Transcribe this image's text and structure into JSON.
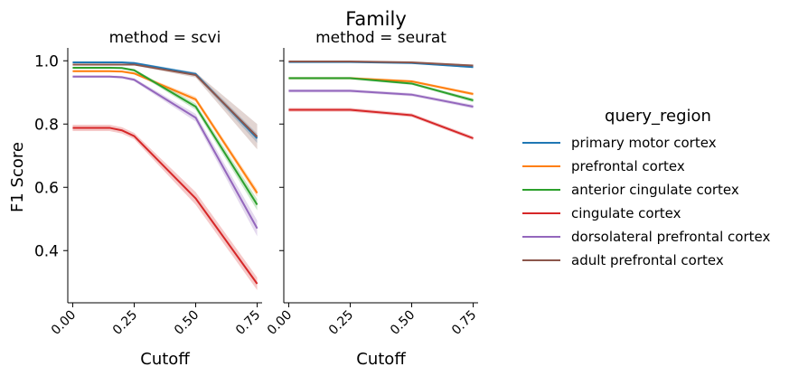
{
  "figure_title": "Family",
  "y_axis_label": "F1 Score",
  "legend": {
    "title": "query_region",
    "placement": "right",
    "entries": [
      {
        "label": "primary motor cortex",
        "color": "#1f77b4"
      },
      {
        "label": "prefrontal cortex",
        "color": "#ff7f0e"
      },
      {
        "label": "anterior cingulate cortex",
        "color": "#2ca02c"
      },
      {
        "label": "cingulate cortex",
        "color": "#d62728"
      },
      {
        "label": "dorsolateral prefrontal cortex",
        "color": "#9467bd"
      },
      {
        "label": "adult prefrontal cortex",
        "color": "#8c564b"
      }
    ]
  },
  "chart_data": [
    {
      "type": "line",
      "title": "method = scvi",
      "xlabel": "Cutoff",
      "ylabel": "F1 Score",
      "x": [
        0.0,
        0.1,
        0.15,
        0.2,
        0.25,
        0.5,
        0.75
      ],
      "xticks": [
        "0.00",
        "0.25",
        "0.50",
        "0.75"
      ],
      "yticks": [
        "0.4",
        "0.6",
        "0.8",
        "1.0"
      ],
      "xlim": [
        -0.02,
        0.77
      ],
      "ylim": [
        0.235,
        1.035
      ],
      "series": [
        {
          "name": "primary motor cortex",
          "values": [
            0.995,
            0.995,
            0.995,
            0.995,
            0.993,
            0.958,
            0.755
          ],
          "ci": [
            0.002,
            0.002,
            0.002,
            0.002,
            0.003,
            0.006,
            0.015
          ]
        },
        {
          "name": "prefrontal cortex",
          "values": [
            0.967,
            0.967,
            0.967,
            0.966,
            0.96,
            0.878,
            0.582
          ],
          "ci": [
            0.003,
            0.003,
            0.003,
            0.003,
            0.004,
            0.008,
            0.012
          ]
        },
        {
          "name": "anterior cingulate cortex",
          "values": [
            0.978,
            0.978,
            0.978,
            0.977,
            0.97,
            0.855,
            0.545
          ],
          "ci": [
            0.003,
            0.003,
            0.003,
            0.003,
            0.004,
            0.01,
            0.018
          ]
        },
        {
          "name": "cingulate cortex",
          "values": [
            0.788,
            0.788,
            0.788,
            0.78,
            0.762,
            0.565,
            0.295
          ],
          "ci": [
            0.01,
            0.01,
            0.01,
            0.01,
            0.01,
            0.02,
            0.02
          ]
        },
        {
          "name": "dorsolateral prefrontal cortex",
          "values": [
            0.95,
            0.95,
            0.95,
            0.948,
            0.94,
            0.82,
            0.47
          ],
          "ci": [
            0.004,
            0.004,
            0.004,
            0.004,
            0.005,
            0.012,
            0.025
          ]
        },
        {
          "name": "adult prefrontal cortex",
          "values": [
            0.988,
            0.988,
            0.988,
            0.988,
            0.988,
            0.955,
            0.76
          ],
          "ci": [
            0.003,
            0.003,
            0.003,
            0.003,
            0.003,
            0.008,
            0.04
          ]
        }
      ]
    },
    {
      "type": "line",
      "title": "method = seurat",
      "xlabel": "Cutoff",
      "ylabel": "",
      "x": [
        0.0,
        0.25,
        0.5,
        0.75
      ],
      "xticks": [
        "0.00",
        "0.25",
        "0.50",
        "0.75"
      ],
      "xlim": [
        -0.02,
        0.77
      ],
      "ylim": [
        0.235,
        1.035
      ],
      "series": [
        {
          "name": "primary motor cortex",
          "values": [
            0.996,
            0.996,
            0.993,
            0.98
          ],
          "ci": [
            0.002,
            0.002,
            0.002,
            0.003
          ]
        },
        {
          "name": "prefrontal cortex",
          "values": [
            0.945,
            0.945,
            0.935,
            0.895
          ],
          "ci": [
            0.004,
            0.004,
            0.004,
            0.005
          ]
        },
        {
          "name": "anterior cingulate cortex",
          "values": [
            0.945,
            0.945,
            0.928,
            0.875
          ],
          "ci": [
            0.004,
            0.004,
            0.004,
            0.006
          ]
        },
        {
          "name": "cingulate cortex",
          "values": [
            0.845,
            0.845,
            0.828,
            0.755
          ],
          "ci": [
            0.006,
            0.006,
            0.006,
            0.006
          ]
        },
        {
          "name": "dorsolateral prefrontal cortex",
          "values": [
            0.905,
            0.905,
            0.893,
            0.855
          ],
          "ci": [
            0.005,
            0.005,
            0.005,
            0.006
          ]
        },
        {
          "name": "adult prefrontal cortex",
          "values": [
            0.998,
            0.998,
            0.995,
            0.985
          ],
          "ci": [
            0.002,
            0.002,
            0.002,
            0.003
          ]
        }
      ]
    }
  ]
}
